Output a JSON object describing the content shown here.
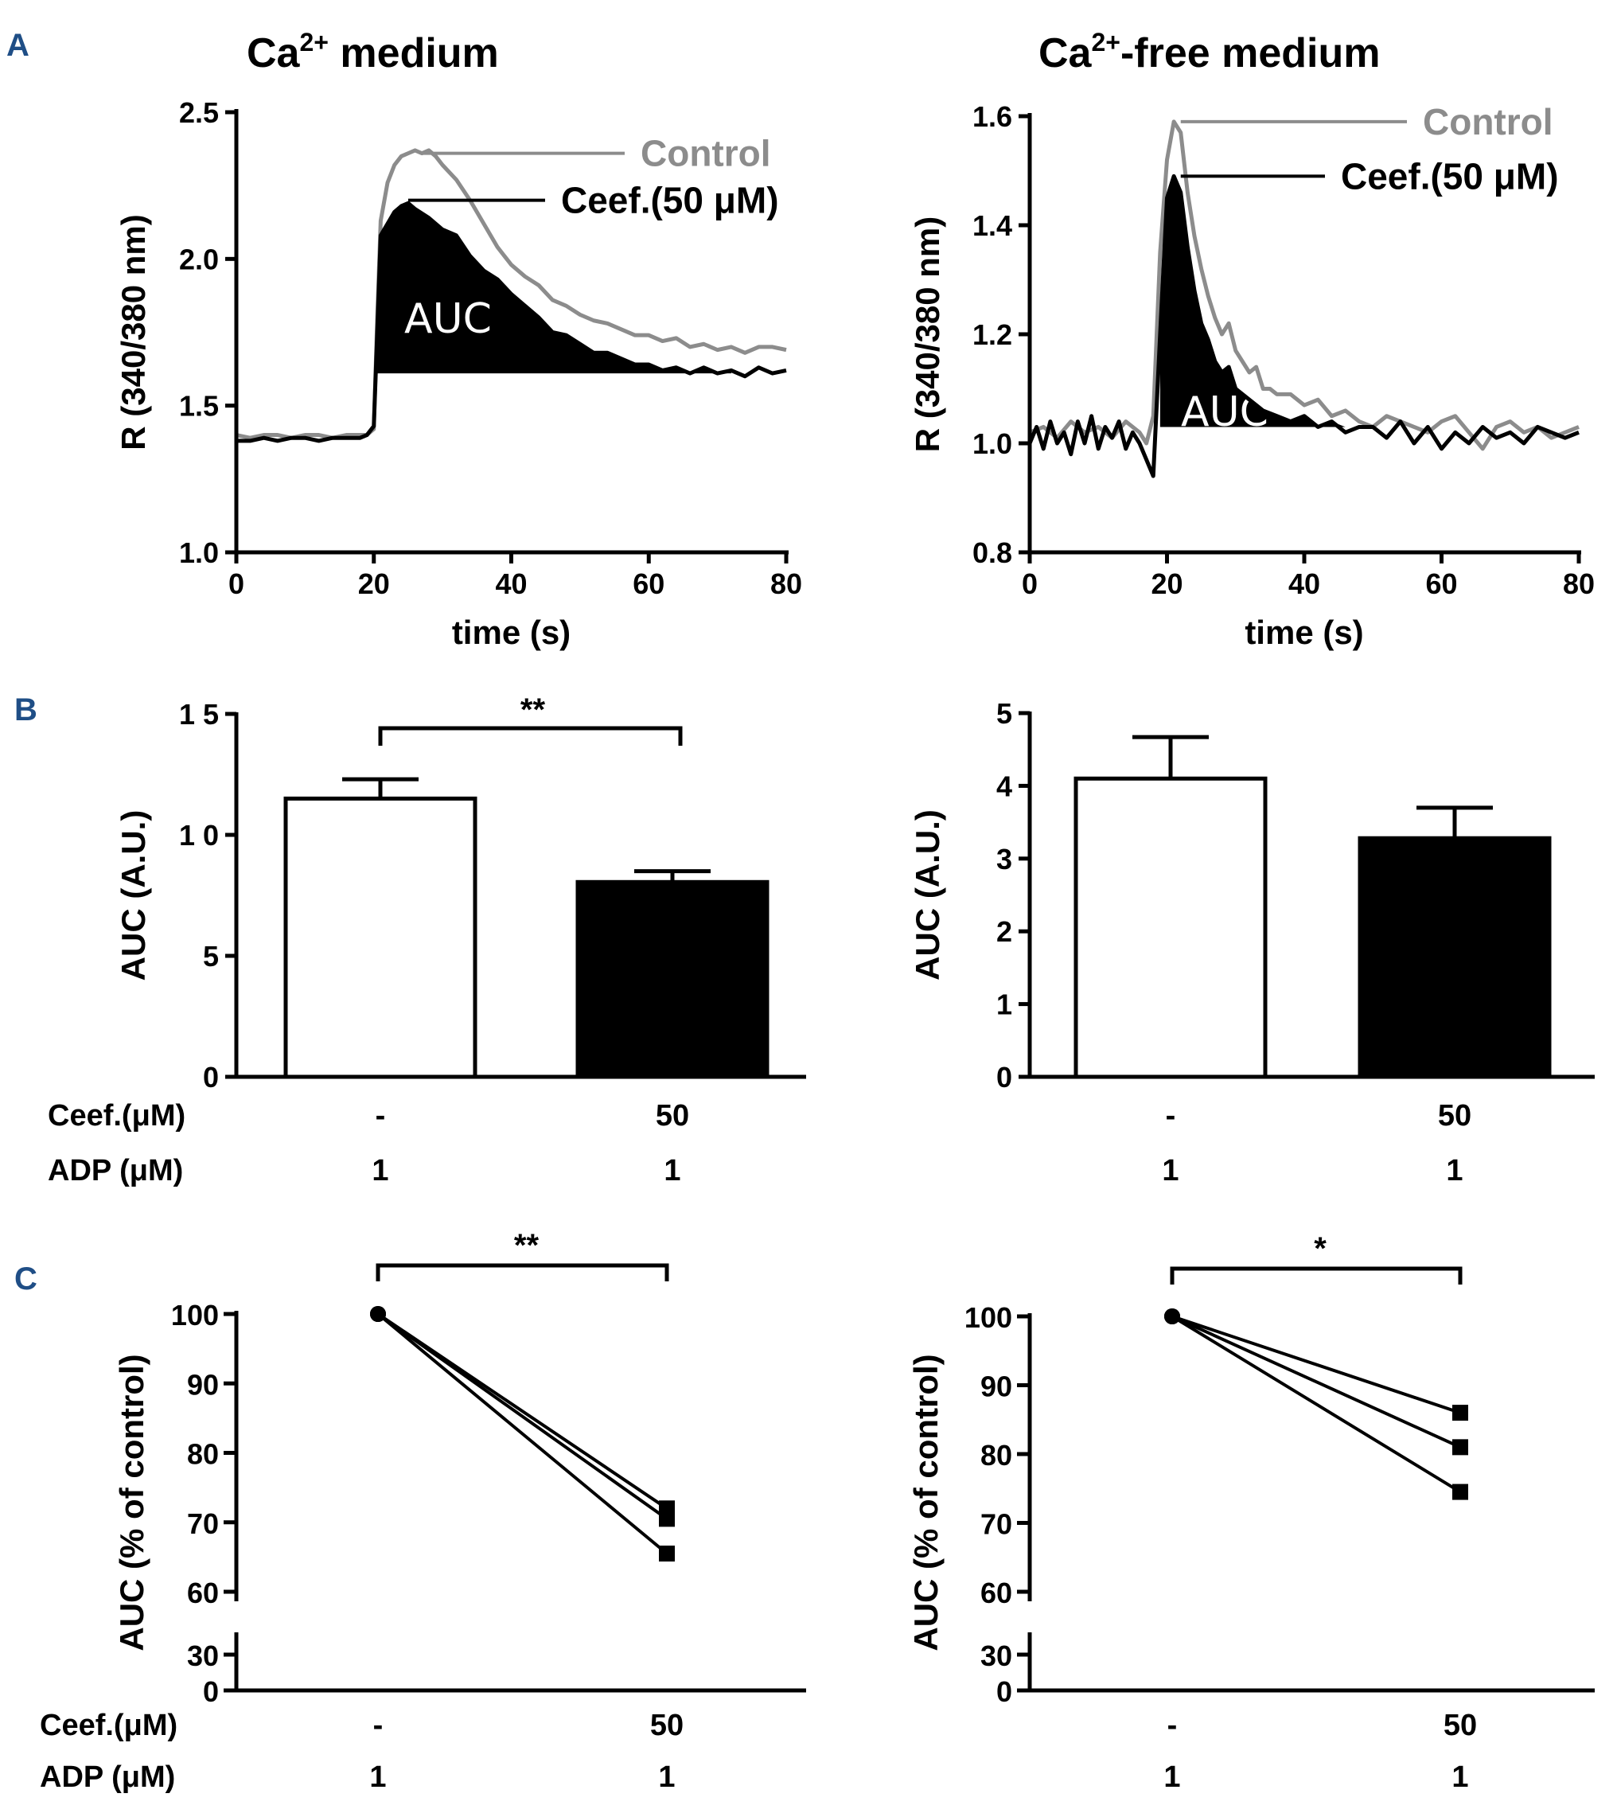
{
  "panel_labels": {
    "a": "A",
    "b": "B",
    "c": "C"
  },
  "colors": {
    "control": "#8c8c8c",
    "ceef": "#000000",
    "label_blue": "#1f4e86"
  },
  "chart_data": [
    {
      "id": "A1",
      "type": "line",
      "title_main": "Ca",
      "title_sup": "2+",
      "title_rest": " medium",
      "xlabel": "time (s)",
      "ylabel": "R (340/380 nm)",
      "xlim": [
        0,
        80
      ],
      "ylim": [
        1.0,
        2.5
      ],
      "xticks": [
        0,
        20,
        40,
        60,
        80
      ],
      "yticks": [
        1.0,
        1.5,
        2.0,
        2.5
      ],
      "ytick_labels": [
        "1.0",
        "1.5",
        "2.0",
        "2.5"
      ],
      "auc_label": "AUC",
      "auc_baseline": 1.61,
      "auc_range": [
        20,
        72
      ],
      "legend": [
        {
          "name": "Control",
          "anchor_x": 27,
          "anchor_y": 2.36
        },
        {
          "name": "Ceef.(50 μM)",
          "anchor_x": 25,
          "anchor_y": 2.2
        }
      ],
      "series": [
        {
          "name": "Control",
          "color": "#8c8c8c",
          "x": [
            0,
            2,
            4,
            6,
            8,
            10,
            12,
            14,
            16,
            18,
            19,
            20,
            20.5,
            21,
            22,
            23,
            24,
            25,
            26,
            27,
            28,
            29,
            30,
            32,
            34,
            36,
            38,
            40,
            42,
            44,
            46,
            48,
            50,
            52,
            54,
            56,
            58,
            60,
            62,
            64,
            66,
            68,
            70,
            72,
            74,
            76,
            78,
            80
          ],
          "y": [
            1.4,
            1.39,
            1.4,
            1.4,
            1.39,
            1.4,
            1.4,
            1.39,
            1.4,
            1.4,
            1.4,
            1.42,
            1.8,
            2.13,
            2.26,
            2.32,
            2.35,
            2.36,
            2.37,
            2.36,
            2.37,
            2.35,
            2.32,
            2.27,
            2.2,
            2.12,
            2.04,
            1.98,
            1.94,
            1.91,
            1.86,
            1.84,
            1.81,
            1.79,
            1.78,
            1.76,
            1.74,
            1.74,
            1.72,
            1.73,
            1.7,
            1.71,
            1.69,
            1.7,
            1.68,
            1.7,
            1.7,
            1.69
          ]
        },
        {
          "name": "Ceef.(50 μM)",
          "color": "#000000",
          "x": [
            0,
            2,
            4,
            6,
            8,
            10,
            12,
            14,
            16,
            18,
            19,
            20,
            20.5,
            21,
            22,
            23,
            24,
            25,
            26,
            28,
            30,
            32,
            34,
            36,
            38,
            40,
            42,
            44,
            46,
            48,
            50,
            52,
            54,
            56,
            58,
            60,
            62,
            64,
            66,
            68,
            70,
            72,
            74,
            76,
            78,
            80
          ],
          "y": [
            1.38,
            1.38,
            1.39,
            1.38,
            1.39,
            1.39,
            1.38,
            1.39,
            1.39,
            1.39,
            1.4,
            1.43,
            1.75,
            2.08,
            2.12,
            2.16,
            2.18,
            2.19,
            2.17,
            2.14,
            2.1,
            2.08,
            2.01,
            1.96,
            1.93,
            1.88,
            1.84,
            1.8,
            1.75,
            1.74,
            1.71,
            1.68,
            1.68,
            1.66,
            1.64,
            1.64,
            1.62,
            1.63,
            1.61,
            1.63,
            1.61,
            1.62,
            1.6,
            1.63,
            1.61,
            1.62
          ]
        }
      ]
    },
    {
      "id": "A2",
      "type": "line",
      "title_main": "Ca",
      "title_sup": "2+",
      "title_rest": "-free medium",
      "xlabel": "time (s)",
      "ylabel": "R (340/380 nm)",
      "xlim": [
        0,
        80
      ],
      "ylim": [
        0.8,
        1.6
      ],
      "xticks": [
        0,
        20,
        40,
        60,
        80
      ],
      "yticks": [
        0.8,
        1.0,
        1.2,
        1.4,
        1.6
      ],
      "ytick_labels": [
        "0.8",
        "1.0",
        "1.2",
        "1.4",
        "1.6"
      ],
      "auc_label": "AUC",
      "auc_baseline": 1.03,
      "auc_range": [
        18.5,
        52
      ],
      "legend": [
        {
          "name": "Control",
          "anchor_x": 22,
          "anchor_y": 1.59
        },
        {
          "name": "Ceef.(50 μM)",
          "anchor_x": 22,
          "anchor_y": 1.49
        }
      ],
      "series": [
        {
          "name": "Control",
          "color": "#8c8c8c",
          "x": [
            0,
            2,
            4,
            6,
            8,
            10,
            12,
            14,
            16,
            17,
            18,
            19,
            20,
            21,
            22,
            23,
            24,
            25,
            26,
            27,
            28,
            29,
            30,
            31,
            32,
            33,
            34,
            35,
            36,
            38,
            40,
            42,
            44,
            46,
            48,
            50,
            52,
            54,
            56,
            58,
            60,
            62,
            64,
            66,
            68,
            70,
            72,
            74,
            76,
            78,
            80
          ],
          "y": [
            1.02,
            1.03,
            1.01,
            1.04,
            1.02,
            1.03,
            1.01,
            1.04,
            1.02,
            1.0,
            1.05,
            1.35,
            1.52,
            1.59,
            1.57,
            1.46,
            1.38,
            1.32,
            1.27,
            1.23,
            1.2,
            1.22,
            1.17,
            1.15,
            1.13,
            1.14,
            1.1,
            1.1,
            1.09,
            1.09,
            1.07,
            1.08,
            1.05,
            1.06,
            1.04,
            1.03,
            1.05,
            1.04,
            1.03,
            1.02,
            1.04,
            1.05,
            1.02,
            0.99,
            1.03,
            1.04,
            1.02,
            1.03,
            1.01,
            1.02,
            1.03
          ]
        },
        {
          "name": "Ceef.(50 μM)",
          "color": "#000000",
          "x": [
            0,
            1,
            2,
            3,
            4,
            5,
            6,
            7,
            8,
            9,
            10,
            11,
            12,
            13,
            14,
            15,
            16,
            17,
            18,
            19,
            20,
            21,
            22,
            23,
            24,
            25,
            26,
            27,
            28,
            29,
            30,
            31,
            32,
            34,
            36,
            38,
            40,
            42,
            44,
            46,
            48,
            50,
            52,
            54,
            56,
            58,
            60,
            62,
            64,
            66,
            68,
            70,
            72,
            74,
            76,
            78,
            80
          ],
          "y": [
            1.0,
            1.03,
            0.99,
            1.04,
            1.0,
            1.02,
            0.98,
            1.04,
            1.0,
            1.05,
            0.99,
            1.03,
            1.01,
            1.04,
            0.99,
            1.02,
            1.0,
            0.97,
            0.94,
            1.2,
            1.45,
            1.49,
            1.46,
            1.36,
            1.28,
            1.22,
            1.19,
            1.15,
            1.13,
            1.14,
            1.1,
            1.09,
            1.08,
            1.06,
            1.05,
            1.04,
            1.05,
            1.03,
            1.04,
            1.02,
            1.03,
            1.03,
            1.01,
            1.04,
            1.0,
            1.03,
            0.99,
            1.02,
            1.0,
            1.03,
            1.01,
            1.02,
            1.0,
            1.03,
            1.02,
            1.01,
            1.02
          ]
        }
      ]
    },
    {
      "id": "B1",
      "type": "bar",
      "ylabel": "AUC (A.U.)",
      "ylim": [
        0,
        15
      ],
      "yticks": [
        0,
        5,
        10,
        15
      ],
      "ytick_labels": [
        "0",
        "5",
        "1 0",
        "1 5"
      ],
      "categories": [
        "-",
        "50"
      ],
      "values": [
        11.5,
        8.05
      ],
      "errors": [
        0.8,
        0.45
      ],
      "fills": [
        "#ffffff",
        "#000000"
      ],
      "significance": "**",
      "conditions": [
        {
          "label": "Ceef.(μM)",
          "values": [
            "-",
            "50"
          ]
        },
        {
          "label": "ADP (μM)",
          "values": [
            "1",
            "1"
          ]
        }
      ]
    },
    {
      "id": "B2",
      "type": "bar",
      "ylabel": "AUC (A.U.)",
      "ylim": [
        0,
        5
      ],
      "yticks": [
        0,
        1,
        2,
        3,
        4,
        5
      ],
      "ytick_labels": [
        "0",
        "1",
        "2",
        "3",
        "4",
        "5"
      ],
      "categories": [
        "-",
        "50"
      ],
      "values": [
        4.1,
        3.28
      ],
      "errors": [
        0.57,
        0.42
      ],
      "fills": [
        "#ffffff",
        "#000000"
      ],
      "significance": "",
      "conditions": [
        {
          "label": "",
          "values": [
            "-",
            "50"
          ]
        },
        {
          "label": "",
          "values": [
            "1",
            "1"
          ]
        }
      ]
    },
    {
      "id": "C1",
      "type": "scatter",
      "ylabel": "AUC (% of control)",
      "yticks_upper": [
        60,
        70,
        80,
        90,
        100
      ],
      "yticks_lower": [
        0,
        30
      ],
      "categories": [
        "-",
        "50"
      ],
      "pairs": [
        [
          100,
          72
        ],
        [
          100,
          70.5
        ],
        [
          100,
          65.5
        ]
      ],
      "significance": "**",
      "conditions": [
        {
          "label": "Ceef.(μM)",
          "values": [
            "-",
            "50"
          ]
        },
        {
          "label": "ADP (μM)",
          "values": [
            "1",
            "1"
          ]
        }
      ]
    },
    {
      "id": "C2",
      "type": "scatter",
      "ylabel": "AUC (% of control)",
      "yticks_upper": [
        60,
        70,
        80,
        90,
        100
      ],
      "yticks_lower": [
        0,
        30
      ],
      "categories": [
        "-",
        "50"
      ],
      "pairs": [
        [
          100,
          86
        ],
        [
          100,
          81
        ],
        [
          100,
          74.5
        ]
      ],
      "significance": "*",
      "conditions": [
        {
          "label": "",
          "values": [
            "-",
            "50"
          ]
        },
        {
          "label": "",
          "values": [
            "1",
            "1"
          ]
        }
      ]
    }
  ]
}
